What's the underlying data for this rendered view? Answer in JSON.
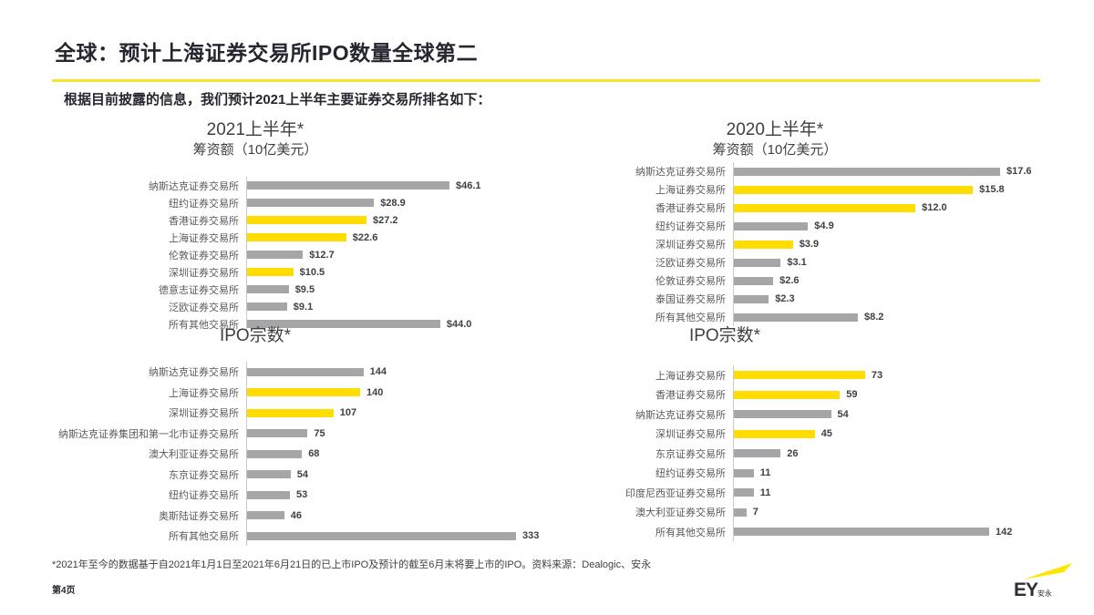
{
  "page": {
    "title": "全球：预计上海证券交易所IPO数量全球第二",
    "subtitle": "根据目前披露的信息，我们预计2021上半年主要证券交易所排名如下：",
    "footnote": "*2021年至今的数据基于自2021年1月1日至2021年6月21日的已上市IPO及预计的截至6月末将要上市的IPO。资料来源：Dealogic、安永",
    "page_number": "第4页",
    "logo": {
      "text": "EY",
      "suffix": "安永"
    }
  },
  "colors": {
    "accent_yellow": "#FFE600",
    "bar_yellow": "#FFDD00",
    "bar_gray": "#A6A6A6",
    "axis_gray": "#C9C9C9"
  },
  "chart_data": [
    {
      "type": "bar",
      "orientation": "horizontal",
      "title": "2021上半年*",
      "subtitle": "筹资额（10亿美元）",
      "legend": "none",
      "grid": false,
      "rows": [
        {
          "label": "纳斯达克证券交易所",
          "value": 46.1,
          "display": "$46.1",
          "highlight": false
        },
        {
          "label": "纽约证券交易所",
          "value": 28.9,
          "display": "$28.9",
          "highlight": false
        },
        {
          "label": "香港证券交易所",
          "value": 27.2,
          "display": "$27.2",
          "highlight": true
        },
        {
          "label": "上海证券交易所",
          "value": 22.6,
          "display": "$22.6",
          "highlight": true
        },
        {
          "label": "伦敦证券交易所",
          "value": 12.7,
          "display": "$12.7",
          "highlight": false
        },
        {
          "label": "深圳证券交易所",
          "value": 10.5,
          "display": "$10.5",
          "highlight": true
        },
        {
          "label": "德意志证券交易所",
          "value": 9.5,
          "display": "$9.5",
          "highlight": false
        },
        {
          "label": "泛欧证券交易所",
          "value": 9.1,
          "display": "$9.1",
          "highlight": false
        },
        {
          "label": "所有其他交易所",
          "value": 44.0,
          "display": "$44.0",
          "highlight": false
        }
      ]
    },
    {
      "type": "bar",
      "orientation": "horizontal",
      "title": "2020上半年*",
      "subtitle": "筹资额（10亿美元）",
      "legend": "none",
      "grid": false,
      "rows": [
        {
          "label": "纳斯达克证券交易所",
          "value": 17.6,
          "display": "$17.6",
          "highlight": false
        },
        {
          "label": "上海证券交易所",
          "value": 15.8,
          "display": "$15.8",
          "highlight": true
        },
        {
          "label": "香港证券交易所",
          "value": 12.0,
          "display": "$12.0",
          "highlight": true
        },
        {
          "label": "纽约证券交易所",
          "value": 4.9,
          "display": "$4.9",
          "highlight": false
        },
        {
          "label": "深圳证券交易所",
          "value": 3.9,
          "display": "$3.9",
          "highlight": true
        },
        {
          "label": "泛欧证券交易所",
          "value": 3.1,
          "display": "$3.1",
          "highlight": false
        },
        {
          "label": "伦敦证券交易所",
          "value": 2.6,
          "display": "$2.6",
          "highlight": false
        },
        {
          "label": "泰国证券交易所",
          "value": 2.3,
          "display": "$2.3",
          "highlight": false
        },
        {
          "label": "所有其他交易所",
          "value": 8.2,
          "display": "$8.2",
          "highlight": false
        }
      ]
    },
    {
      "type": "bar",
      "orientation": "horizontal",
      "title": "IPO宗数*",
      "subtitle": "",
      "legend": "none",
      "grid": false,
      "rows": [
        {
          "label": "纳斯达克证券交易所",
          "value": 144,
          "display": "144",
          "highlight": false
        },
        {
          "label": "上海证券交易所",
          "value": 140,
          "display": "140",
          "highlight": true
        },
        {
          "label": "深圳证券交易所",
          "value": 107,
          "display": "107",
          "highlight": true
        },
        {
          "label": "纳斯达克证券集团和第一北市证券交易所",
          "value": 75,
          "display": "75",
          "highlight": false
        },
        {
          "label": "澳大利亚证券交易所",
          "value": 68,
          "display": "68",
          "highlight": false
        },
        {
          "label": "东京证券交易所",
          "value": 54,
          "display": "54",
          "highlight": false
        },
        {
          "label": "纽约证券交易所",
          "value": 53,
          "display": "53",
          "highlight": false
        },
        {
          "label": "奥斯陆证券交易所",
          "value": 46,
          "display": "46",
          "highlight": false
        },
        {
          "label": "所有其他交易所",
          "value": 333,
          "display": "333",
          "highlight": false
        }
      ]
    },
    {
      "type": "bar",
      "orientation": "horizontal",
      "title": "IPO宗数*",
      "subtitle": "",
      "legend": "none",
      "grid": false,
      "rows": [
        {
          "label": "上海证券交易所",
          "value": 73,
          "display": "73",
          "highlight": true
        },
        {
          "label": "香港证券交易所",
          "value": 59,
          "display": "59",
          "highlight": true
        },
        {
          "label": "纳斯达克证券交易所",
          "value": 54,
          "display": "54",
          "highlight": false
        },
        {
          "label": "深圳证券交易所",
          "value": 45,
          "display": "45",
          "highlight": true
        },
        {
          "label": "东京证券交易所",
          "value": 26,
          "display": "26",
          "highlight": false
        },
        {
          "label": "纽约证券交易所",
          "value": 11,
          "display": "11",
          "highlight": false
        },
        {
          "label": "印度尼西亚证券交易所",
          "value": 11,
          "display": "11",
          "highlight": false
        },
        {
          "label": "澳大利亚证券交易所",
          "value": 7,
          "display": "7",
          "highlight": false
        },
        {
          "label": "所有其他交易所",
          "value": 142,
          "display": "142",
          "highlight": false
        }
      ]
    }
  ]
}
